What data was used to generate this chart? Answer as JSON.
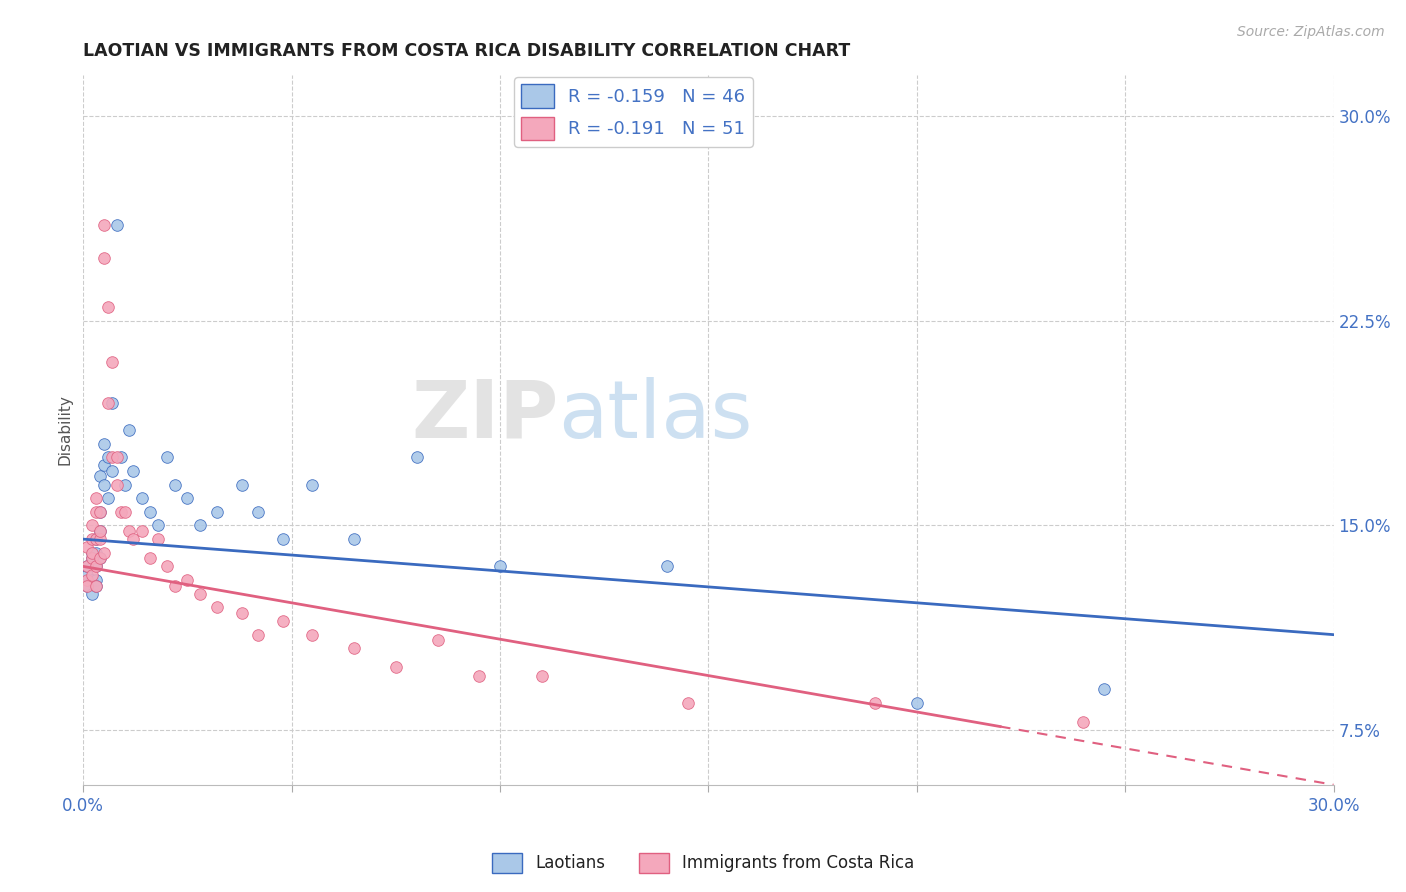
{
  "title": "LAOTIAN VS IMMIGRANTS FROM COSTA RICA DISABILITY CORRELATION CHART",
  "source": "Source: ZipAtlas.com",
  "ylabel": "Disability",
  "xlim": [
    0.0,
    0.3
  ],
  "ylim": [
    0.055,
    0.315
  ],
  "xticks": [
    0.0,
    0.05,
    0.1,
    0.15,
    0.2,
    0.25,
    0.3
  ],
  "yticks": [
    0.075,
    0.15,
    0.225,
    0.3
  ],
  "laotian_R": -0.159,
  "laotian_N": 46,
  "costa_rica_R": -0.191,
  "costa_rica_N": 51,
  "laotian_color": "#aac8e8",
  "costa_rica_color": "#f4a8bc",
  "laotian_line_color": "#3a6abf",
  "costa_rica_line_color": "#e06080",
  "watermark": "ZIP",
  "watermark2": "atlas",
  "legend_label_1": "Laotians",
  "legend_label_2": "Immigrants from Costa Rica",
  "laotian_x": [
    0.001,
    0.001,
    0.001,
    0.002,
    0.002,
    0.002,
    0.002,
    0.003,
    0.003,
    0.003,
    0.003,
    0.003,
    0.004,
    0.004,
    0.004,
    0.004,
    0.005,
    0.005,
    0.005,
    0.006,
    0.006,
    0.007,
    0.007,
    0.008,
    0.009,
    0.01,
    0.011,
    0.012,
    0.014,
    0.016,
    0.018,
    0.02,
    0.022,
    0.025,
    0.028,
    0.032,
    0.038,
    0.042,
    0.048,
    0.055,
    0.065,
    0.08,
    0.1,
    0.14,
    0.2,
    0.245
  ],
  "laotian_y": [
    0.132,
    0.128,
    0.135,
    0.13,
    0.125,
    0.14,
    0.138,
    0.13,
    0.128,
    0.135,
    0.14,
    0.145,
    0.138,
    0.148,
    0.155,
    0.168,
    0.18,
    0.172,
    0.165,
    0.175,
    0.16,
    0.195,
    0.17,
    0.26,
    0.175,
    0.165,
    0.185,
    0.17,
    0.16,
    0.155,
    0.15,
    0.175,
    0.165,
    0.16,
    0.15,
    0.155,
    0.165,
    0.155,
    0.145,
    0.165,
    0.145,
    0.175,
    0.135,
    0.135,
    0.085,
    0.09
  ],
  "costa_rica_x": [
    0.001,
    0.001,
    0.001,
    0.001,
    0.002,
    0.002,
    0.002,
    0.002,
    0.002,
    0.003,
    0.003,
    0.003,
    0.003,
    0.003,
    0.004,
    0.004,
    0.004,
    0.004,
    0.005,
    0.005,
    0.005,
    0.006,
    0.006,
    0.007,
    0.007,
    0.008,
    0.008,
    0.009,
    0.01,
    0.011,
    0.012,
    0.014,
    0.016,
    0.018,
    0.02,
    0.022,
    0.025,
    0.028,
    0.032,
    0.038,
    0.042,
    0.048,
    0.055,
    0.065,
    0.075,
    0.085,
    0.095,
    0.11,
    0.145,
    0.19,
    0.24
  ],
  "costa_rica_y": [
    0.13,
    0.135,
    0.128,
    0.142,
    0.138,
    0.132,
    0.145,
    0.15,
    0.14,
    0.128,
    0.135,
    0.145,
    0.155,
    0.16,
    0.145,
    0.155,
    0.148,
    0.138,
    0.26,
    0.248,
    0.14,
    0.23,
    0.195,
    0.21,
    0.175,
    0.165,
    0.175,
    0.155,
    0.155,
    0.148,
    0.145,
    0.148,
    0.138,
    0.145,
    0.135,
    0.128,
    0.13,
    0.125,
    0.12,
    0.118,
    0.11,
    0.115,
    0.11,
    0.105,
    0.098,
    0.108,
    0.095,
    0.095,
    0.085,
    0.085,
    0.078
  ],
  "background_color": "#ffffff",
  "grid_color": "#cccccc"
}
